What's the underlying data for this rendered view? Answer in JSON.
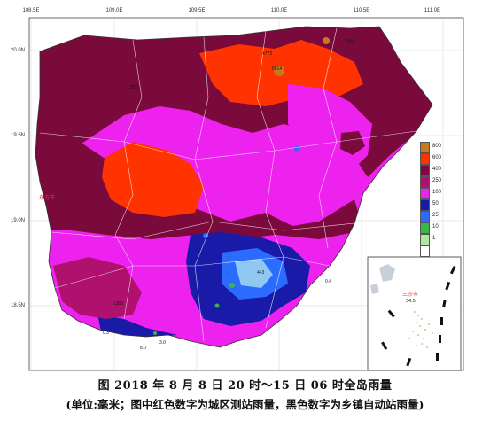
{
  "map": {
    "longitude_labels": [
      "108.5E",
      "109.0E",
      "109.5E",
      "110.0E",
      "110.5E",
      "111.0E"
    ],
    "latitude_labels": [
      "20.0N",
      "19.5N",
      "19.0N",
      "18.5N"
    ]
  },
  "legend": {
    "items": [
      {
        "value": "800",
        "color": "#c8781e"
      },
      {
        "value": "600",
        "color": "#ff3300"
      },
      {
        "value": "400",
        "color": "#7a0a3c"
      },
      {
        "value": "250",
        "color": "#b0106e"
      },
      {
        "value": "100",
        "color": "#ee22ee"
      },
      {
        "value": "50",
        "color": "#1a1aa8"
      },
      {
        "value": "25",
        "color": "#2b6cff"
      },
      {
        "value": "10",
        "color": "#3cb44a"
      },
      {
        "value": "1",
        "color": "#aee8a0"
      },
      {
        "value": "",
        "color": "#ffffff"
      }
    ]
  },
  "city_labels": {
    "dongfang": "东方市",
    "sansha": "三沙市",
    "sansha_value": "34.5"
  },
  "sample_station_values": [
    "5550",
    "4773",
    "6814",
    "2811",
    "443",
    "0.4",
    "0.3",
    "1353",
    "3.0",
    "8.0"
  ],
  "caption": {
    "title": "图  2018 年 8 月 8 日 20 时～15 日 06 时全岛雨量",
    "note": "(单位:毫米；图中红色数字为城区测站雨量，黑色数字为乡镇自动站雨量)"
  }
}
